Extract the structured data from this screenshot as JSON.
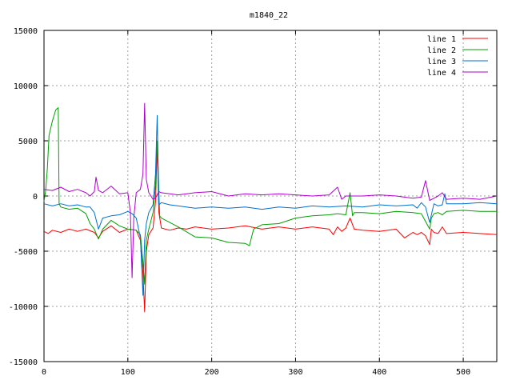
{
  "chart_data": {
    "type": "line",
    "title": "m1840_22",
    "xlabel": "",
    "ylabel": "",
    "xlim": [
      0,
      540
    ],
    "ylim": [
      -15000,
      15000
    ],
    "x_ticks": [
      0,
      100,
      200,
      300,
      400,
      500
    ],
    "y_ticks": [
      -15000,
      -10000,
      -5000,
      0,
      5000,
      10000,
      15000
    ],
    "grid": true,
    "legend_position": "top-right",
    "series": [
      {
        "name": "line 1",
        "color": "#ff0000",
        "x": [
          0,
          5,
          10,
          20,
          30,
          40,
          50,
          60,
          65,
          70,
          80,
          90,
          100,
          110,
          115,
          118,
          120,
          122,
          125,
          130,
          133,
          135,
          137,
          140,
          150,
          160,
          170,
          180,
          200,
          220,
          240,
          260,
          280,
          300,
          320,
          340,
          345,
          350,
          355,
          360,
          365,
          370,
          380,
          400,
          420,
          430,
          440,
          445,
          450,
          455,
          460,
          462,
          465,
          470,
          475,
          480,
          500,
          520,
          540
        ],
        "y": [
          -3200,
          -3400,
          -3100,
          -3300,
          -3000,
          -3200,
          -3000,
          -3300,
          -3800,
          -3200,
          -2700,
          -3300,
          -3000,
          -3100,
          -4000,
          -7000,
          -10500,
          -5000,
          -3500,
          -2900,
          -500,
          4500,
          -1500,
          -2900,
          -3100,
          -2900,
          -3000,
          -2800,
          -3000,
          -2900,
          -2700,
          -3000,
          -2800,
          -3000,
          -2800,
          -3000,
          -3500,
          -2800,
          -3200,
          -2900,
          -2000,
          -3000,
          -3100,
          -3200,
          -3000,
          -3800,
          -3300,
          -3500,
          -3300,
          -3600,
          -4400,
          -3000,
          -3300,
          -3400,
          -2800,
          -3400,
          -3300,
          -3400,
          -3500
        ]
      },
      {
        "name": "line 2",
        "color": "#00a000",
        "x": [
          0,
          2,
          4,
          6,
          10,
          14,
          17,
          18,
          20,
          30,
          40,
          50,
          55,
          60,
          65,
          70,
          80,
          90,
          100,
          110,
          115,
          118,
          120,
          122,
          125,
          130,
          133,
          135,
          138,
          140,
          150,
          160,
          180,
          200,
          220,
          240,
          245,
          250,
          260,
          280,
          300,
          320,
          340,
          350,
          360,
          365,
          368,
          370,
          380,
          400,
          420,
          440,
          450,
          460,
          462,
          465,
          470,
          475,
          480,
          500,
          520,
          540
        ],
        "y": [
          -500,
          500,
          2500,
          5500,
          6800,
          7800,
          8000,
          -700,
          -1000,
          -1200,
          -1100,
          -1600,
          -2500,
          -3000,
          -3900,
          -3000,
          -2200,
          -2700,
          -3000,
          -3100,
          -3500,
          -6000,
          -8000,
          -4000,
          -3000,
          -1500,
          1000,
          5000,
          -1800,
          -2000,
          -2400,
          -2800,
          -3700,
          -3800,
          -4200,
          -4300,
          -4500,
          -3000,
          -2600,
          -2500,
          -2000,
          -1800,
          -1700,
          -1600,
          -1700,
          300,
          -1800,
          -1500,
          -1500,
          -1600,
          -1400,
          -1500,
          -1600,
          -3000,
          -2000,
          -1600,
          -1500,
          -1700,
          -1400,
          -1300,
          -1400,
          -1400
        ]
      },
      {
        "name": "line 3",
        "color": "#0070d0",
        "x": [
          0,
          10,
          20,
          30,
          40,
          50,
          55,
          60,
          65,
          70,
          80,
          90,
          100,
          105,
          110,
          115,
          118,
          120,
          122,
          125,
          130,
          133,
          135,
          137,
          140,
          150,
          160,
          180,
          200,
          220,
          240,
          260,
          280,
          300,
          320,
          340,
          360,
          380,
          400,
          420,
          440,
          445,
          450,
          455,
          460,
          465,
          470,
          475,
          478,
          480,
          500,
          520,
          540
        ],
        "y": [
          -700,
          -900,
          -700,
          -900,
          -800,
          -1000,
          -1000,
          -1500,
          -3000,
          -2000,
          -1800,
          -1700,
          -1400,
          -1600,
          -2000,
          -3800,
          -9000,
          -4000,
          -2500,
          -1500,
          -800,
          2000,
          7300,
          -800,
          -600,
          -800,
          -900,
          -1100,
          -1000,
          -1100,
          -1000,
          -1200,
          -1000,
          -1100,
          -900,
          -1000,
          -900,
          -1000,
          -800,
          -900,
          -800,
          -1100,
          -600,
          -1000,
          -2400,
          -700,
          -900,
          -800,
          200,
          -700,
          -700,
          -600,
          -700
        ]
      },
      {
        "name": "line 4",
        "color": "#b000d0",
        "x": [
          0,
          10,
          20,
          30,
          40,
          50,
          55,
          60,
          62,
          65,
          70,
          80,
          90,
          100,
          103,
          105,
          107,
          110,
          115,
          118,
          120,
          122,
          125,
          130,
          133,
          135,
          137,
          140,
          150,
          160,
          180,
          200,
          220,
          240,
          260,
          280,
          300,
          320,
          340,
          350,
          355,
          360,
          380,
          400,
          420,
          440,
          450,
          455,
          460,
          465,
          470,
          475,
          480,
          500,
          520,
          540
        ],
        "y": [
          600,
          500,
          800,
          400,
          600,
          300,
          0,
          400,
          1700,
          500,
          300,
          900,
          200,
          300,
          -1500,
          -7400,
          -2000,
          300,
          600,
          2000,
          8400,
          1500,
          300,
          -300,
          -200,
          100,
          400,
          300,
          200,
          100,
          300,
          400,
          0,
          200,
          100,
          200,
          100,
          0,
          100,
          800,
          -300,
          0,
          0,
          100,
          0,
          -200,
          -100,
          1400,
          -400,
          -200,
          0,
          300,
          -300,
          -200,
          -300,
          0
        ]
      }
    ]
  }
}
